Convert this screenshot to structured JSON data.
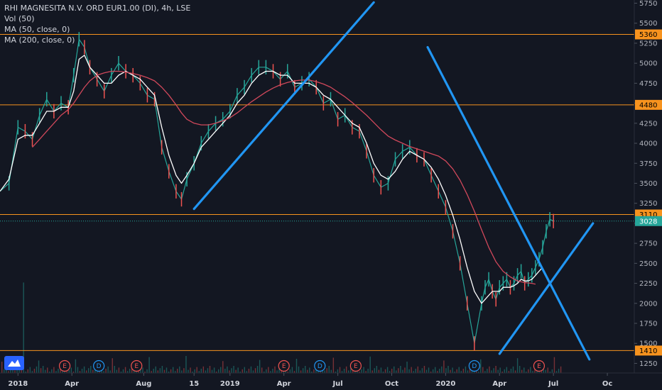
{
  "legend": {
    "title": "RHI MAGNESITA N.V. ORD EUR1.00 (DI), 4h, LSE",
    "vol": "Vol (50)",
    "ma50": "MA (50, close, 0)",
    "ma200": "MA (200, close, 0)"
  },
  "chart_data": {
    "type": "line",
    "title": "RHI MAGNESITA N.V. ORD EUR1.00 (DI), 4h, LSE",
    "x_ticks": [
      "2018",
      "Apr",
      "Aug",
      "15",
      "2019",
      "Apr",
      "Jul",
      "Oct",
      "2020",
      "Apr",
      "Jul",
      "Oc"
    ],
    "x_tick_positions_index": [
      0.2,
      3.2,
      7.2,
      10.0,
      12.0,
      15.0,
      18.0,
      21.0,
      24.0,
      27.0,
      30.0,
      33.0
    ],
    "y_ticks": [
      5750,
      5500,
      5250,
      5000,
      4750,
      4500,
      4250,
      4000,
      3750,
      3500,
      3250,
      3000,
      2750,
      2500,
      2250,
      2000,
      1750,
      1500,
      1250
    ],
    "ylim": [
      1130,
      5790
    ],
    "xlim_months": [
      -0.8,
      34.5
    ],
    "price_levels": [
      {
        "value": 5360,
        "label": "5360"
      },
      {
        "value": 4480,
        "label": "4480"
      },
      {
        "value": 3110,
        "label": "3110"
      },
      {
        "value": 1410,
        "label": "1410"
      }
    ],
    "last_price": {
      "value": 3028,
      "label": "3028"
    },
    "series": [
      {
        "key": "price",
        "color": "#26a69a",
        "x": [
          -0.8,
          -0.3,
          0.2,
          0.6,
          1.0,
          1.4,
          1.8,
          2.2,
          2.6,
          3.0,
          3.3,
          3.6,
          3.9,
          4.2,
          4.6,
          5.0,
          5.4,
          5.8,
          6.2,
          6.6,
          7.0,
          7.4,
          7.8,
          8.2,
          8.6,
          9.0,
          9.3,
          9.6,
          10.0,
          10.4,
          10.8,
          11.2,
          11.6,
          12.0,
          12.4,
          12.8,
          13.2,
          13.6,
          14.0,
          14.4,
          14.8,
          15.2,
          15.6,
          16.0,
          16.4,
          16.8,
          17.2,
          17.6,
          18.0,
          18.4,
          18.8,
          19.2,
          19.6,
          20.0,
          20.4,
          20.8,
          21.2,
          21.6,
          22.0,
          22.4,
          22.8,
          23.2,
          23.6,
          24.0,
          24.4,
          24.8,
          25.2,
          25.6,
          26.0,
          26.2,
          26.4,
          26.6,
          26.8,
          27.0,
          27.2,
          27.4,
          27.6,
          27.8,
          28.0,
          28.2,
          28.4,
          28.6,
          28.8,
          29.0,
          29.2,
          29.4,
          29.6,
          29.8,
          30.0
        ],
        "values": [
          3400,
          3500,
          4200,
          4150,
          4050,
          4350,
          4550,
          4400,
          4500,
          4450,
          4850,
          5300,
          5200,
          4950,
          4800,
          4650,
          4850,
          5000,
          4900,
          4850,
          4750,
          4600,
          4550,
          3950,
          3650,
          3400,
          3300,
          3550,
          3750,
          4000,
          4150,
          4250,
          4300,
          4400,
          4600,
          4700,
          4850,
          4950,
          4950,
          4900,
          4800,
          4900,
          4700,
          4750,
          4800,
          4700,
          4500,
          4550,
          4300,
          4350,
          4200,
          4150,
          3900,
          3600,
          3450,
          3500,
          3800,
          3900,
          3950,
          3850,
          3800,
          3600,
          3400,
          3200,
          2900,
          2500,
          2000,
          1500,
          2000,
          2200,
          2300,
          2150,
          2050,
          2200,
          2250,
          2300,
          2200,
          2250,
          2350,
          2400,
          2250,
          2300,
          2350,
          2450,
          2550,
          2700,
          2900,
          3050,
          3028
        ]
      },
      {
        "key": "ma50",
        "color": "#ffffff",
        "x": [
          -0.8,
          -0.3,
          0.2,
          0.6,
          1.0,
          1.4,
          1.8,
          2.2,
          2.6,
          3.0,
          3.3,
          3.6,
          3.9,
          4.2,
          4.6,
          5.0,
          5.4,
          5.8,
          6.2,
          6.6,
          7.0,
          7.4,
          7.8,
          8.2,
          8.6,
          9.0,
          9.3,
          9.6,
          10.0,
          10.4,
          10.8,
          11.2,
          11.6,
          12.0,
          12.4,
          12.8,
          13.2,
          13.6,
          14.0,
          14.4,
          14.8,
          15.2,
          15.6,
          16.0,
          16.4,
          16.8,
          17.2,
          17.6,
          18.0,
          18.4,
          18.8,
          19.2,
          19.6,
          20.0,
          20.4,
          20.8,
          21.2,
          21.6,
          22.0,
          22.4,
          22.8,
          23.2,
          23.6,
          24.0,
          24.4,
          24.8,
          25.2,
          25.6,
          26.0,
          26.2,
          26.4,
          26.6,
          26.8,
          27.0,
          27.2,
          27.4,
          27.6,
          27.8,
          28.0,
          28.2,
          28.4,
          28.6,
          28.8,
          29.0,
          29.2,
          29.4,
          29.6,
          29.8,
          30.0
        ],
        "values": [
          3400,
          3550,
          4050,
          4100,
          4100,
          4250,
          4400,
          4400,
          4450,
          4450,
          4650,
          5050,
          5100,
          4950,
          4850,
          4750,
          4750,
          4850,
          4900,
          4850,
          4800,
          4700,
          4600,
          4200,
          3850,
          3600,
          3500,
          3600,
          3750,
          3950,
          4050,
          4150,
          4250,
          4350,
          4500,
          4600,
          4750,
          4850,
          4900,
          4900,
          4850,
          4850,
          4750,
          4750,
          4750,
          4700,
          4600,
          4550,
          4450,
          4350,
          4250,
          4200,
          4000,
          3750,
          3600,
          3550,
          3650,
          3800,
          3900,
          3850,
          3800,
          3700,
          3550,
          3350,
          3100,
          2800,
          2450,
          2150,
          2000,
          2050,
          2100,
          2150,
          2150,
          2150,
          2200,
          2200,
          2200,
          2220,
          2250,
          2300,
          2280,
          2280,
          2300,
          2350,
          2400,
          2450,
          null,
          null,
          null
        ]
      },
      {
        "key": "ma200",
        "color": "#d0485b",
        "x": [
          1.0,
          1.4,
          1.8,
          2.2,
          2.6,
          3.0,
          3.3,
          3.6,
          3.9,
          4.2,
          4.6,
          5.0,
          5.4,
          5.8,
          6.2,
          6.6,
          7.0,
          7.4,
          7.8,
          8.2,
          8.6,
          9.0,
          9.3,
          9.6,
          10.0,
          10.4,
          10.8,
          11.2,
          11.6,
          12.0,
          12.4,
          12.8,
          13.2,
          13.6,
          14.0,
          14.4,
          14.8,
          15.2,
          15.6,
          16.0,
          16.4,
          16.8,
          17.2,
          17.6,
          18.0,
          18.4,
          18.8,
          19.2,
          19.6,
          20.0,
          20.4,
          20.8,
          21.2,
          21.6,
          22.0,
          22.4,
          22.8,
          23.2,
          23.6,
          24.0,
          24.4,
          24.8,
          25.2,
          25.6,
          26.0,
          26.4,
          26.8,
          27.2,
          27.6,
          28.0,
          28.4,
          28.8,
          29.0
        ],
        "values": [
          3950,
          4050,
          4150,
          4250,
          4350,
          4420,
          4500,
          4600,
          4700,
          4780,
          4850,
          4880,
          4900,
          4900,
          4890,
          4870,
          4850,
          4820,
          4780,
          4700,
          4600,
          4480,
          4380,
          4300,
          4250,
          4230,
          4230,
          4250,
          4280,
          4320,
          4380,
          4450,
          4520,
          4580,
          4640,
          4690,
          4730,
          4760,
          4780,
          4790,
          4790,
          4770,
          4740,
          4700,
          4640,
          4580,
          4510,
          4430,
          4350,
          4260,
          4170,
          4090,
          4040,
          4000,
          3960,
          3930,
          3900,
          3870,
          3840,
          3780,
          3680,
          3540,
          3360,
          3150,
          2920,
          2700,
          2520,
          2400,
          2330,
          2280,
          2260,
          2250,
          2240
        ]
      }
    ],
    "trendlines": [
      {
        "x1": 10.0,
        "y1": 3180,
        "x2": 20.0,
        "y2": 5760
      },
      {
        "x1": 23.0,
        "y1": 5200,
        "x2": 32.0,
        "y2": 1300
      },
      {
        "x1": 27.0,
        "y1": 1370,
        "x2": 32.2,
        "y2": 3000
      }
    ],
    "events": [
      {
        "label": "E",
        "x": 2.8,
        "type": "earnings"
      },
      {
        "label": "D",
        "x": 4.7,
        "type": "dividend"
      },
      {
        "label": "E",
        "x": 6.8,
        "type": "earnings"
      },
      {
        "label": "E",
        "x": 15.0,
        "type": "earnings"
      },
      {
        "label": "D",
        "x": 17.0,
        "type": "dividend"
      },
      {
        "label": "E",
        "x": 19.0,
        "type": "earnings"
      },
      {
        "label": "D",
        "x": 25.6,
        "type": "dividend"
      },
      {
        "label": "E",
        "x": 29.2,
        "type": "earnings"
      }
    ],
    "grid": false,
    "legend_position": "top-left",
    "colors": {
      "background": "#131722",
      "level_line": "#f7931e",
      "trendline": "#2196f3",
      "last_price_tag": "#26a69a",
      "earnings": "#ef5350",
      "dividend": "#2196f3",
      "axis_text": "#b2b5be"
    }
  }
}
